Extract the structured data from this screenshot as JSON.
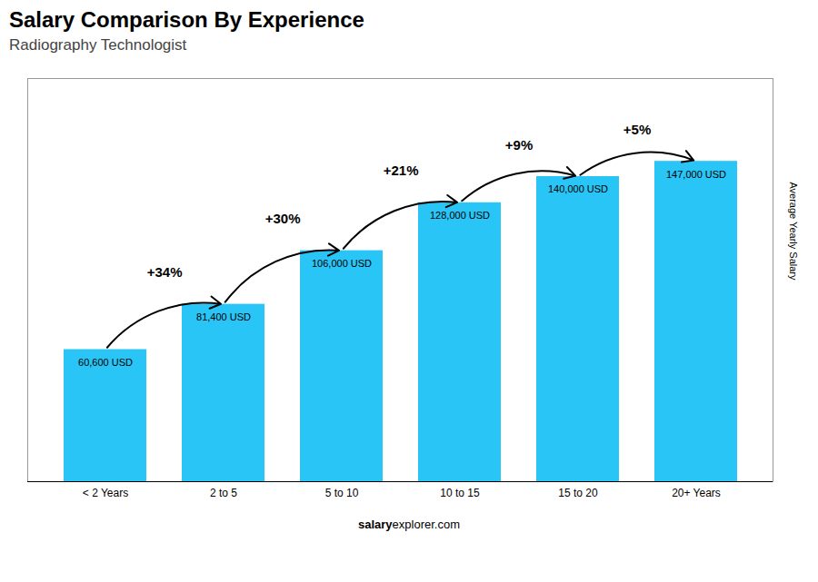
{
  "chart_data": {
    "type": "bar",
    "title": "Salary Comparison By Experience",
    "subtitle": "Radiography Technologist",
    "categories": [
      "< 2 Years",
      "2 to 5",
      "5 to 10",
      "10 to 15",
      "15 to 20",
      "20+ Years"
    ],
    "values": [
      60600,
      81400,
      106000,
      128000,
      140000,
      147000
    ],
    "value_labels": [
      "60,600 USD",
      "81,400 USD",
      "106,000 USD",
      "128,000 USD",
      "140,000 USD",
      "147,000 USD"
    ],
    "data_labels": true,
    "annotations": [
      "+34%",
      "+30%",
      "+21%",
      "+9%",
      "+5%"
    ],
    "ylabel": "Average Yearly Salary",
    "footer": [
      "salary",
      "explorer.com"
    ],
    "color": "#29c5f6",
    "ylim": [
      0,
      185000
    ],
    "tick_labels": "x",
    "grid": false
  }
}
